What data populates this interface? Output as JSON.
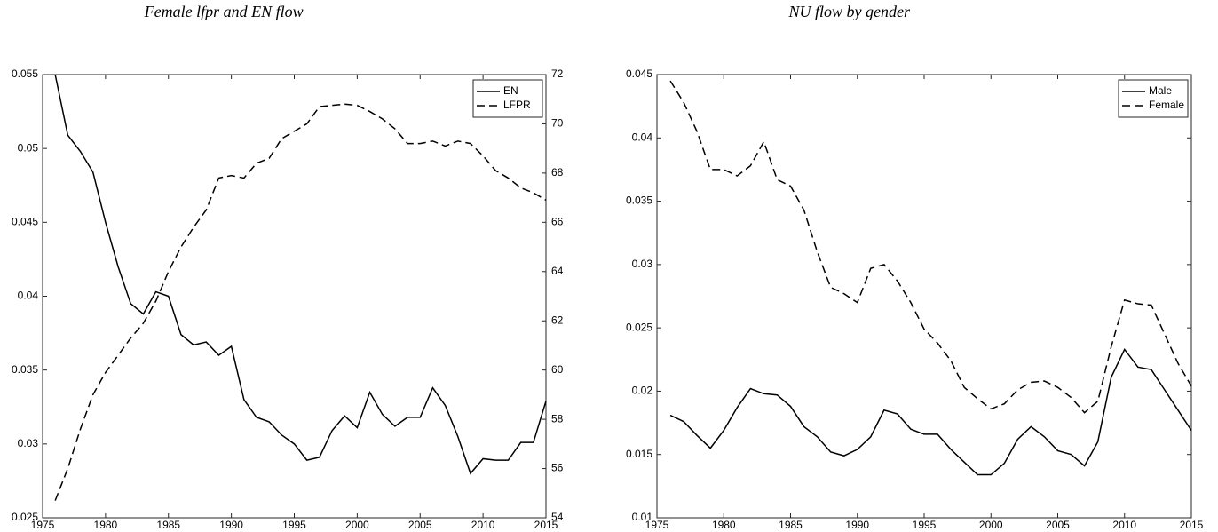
{
  "chart_data": [
    {
      "type": "line",
      "title": "Female lfpr and EN flow",
      "x": [
        1976,
        1977,
        1978,
        1979,
        1980,
        1981,
        1982,
        1983,
        1984,
        1985,
        1986,
        1987,
        1988,
        1989,
        1990,
        1991,
        1992,
        1993,
        1994,
        1995,
        1996,
        1997,
        1998,
        1999,
        2000,
        2001,
        2002,
        2003,
        2004,
        2005,
        2006,
        2007,
        2008,
        2009,
        2010,
        2011,
        2012,
        2013,
        2014,
        2015
      ],
      "series": [
        {
          "name": "EN",
          "color": "#000000",
          "dash": "solid",
          "values": [
            0.055,
            0.0509,
            0.0498,
            0.0484,
            0.045,
            0.042,
            0.0395,
            0.0388,
            0.0403,
            0.04,
            0.0374,
            0.0367,
            0.0369,
            0.036,
            0.0366,
            0.033,
            0.0318,
            0.0315,
            0.0306,
            0.03,
            0.0289,
            0.0291,
            0.0309,
            0.0319,
            0.0311,
            0.0335,
            0.032,
            0.0312,
            0.0318,
            0.0318,
            0.0338,
            0.0326,
            0.0305,
            0.028,
            0.029,
            0.0289,
            0.0289,
            0.0301,
            0.0301,
            0.0329
          ]
        },
        {
          "name": "LFPR",
          "color": "#000000",
          "dash": "dashed",
          "axis": "y2",
          "values": [
            54.7,
            56.0,
            57.6,
            59.0,
            59.9,
            60.6,
            61.3,
            61.9,
            62.8,
            64.0,
            65.0,
            65.8,
            66.5,
            67.8,
            67.9,
            67.8,
            68.4,
            68.6,
            69.4,
            69.7,
            70.0,
            70.7,
            70.75,
            70.8,
            70.75,
            70.5,
            70.2,
            69.8,
            69.2,
            69.2,
            69.3,
            69.1,
            69.3,
            69.2,
            68.7,
            68.1,
            67.8,
            67.4,
            67.2,
            66.9
          ]
        }
      ],
      "xlim": [
        1975,
        2015
      ],
      "xticks": [
        1975,
        1980,
        1985,
        1990,
        1995,
        2000,
        2005,
        2010,
        2015
      ],
      "ylim": [
        0.025,
        0.055
      ],
      "yticks": [
        0.025,
        0.03,
        0.035,
        0.04,
        0.045,
        0.05,
        0.055
      ],
      "y2lim": [
        54,
        72
      ],
      "y2ticks": [
        54,
        56,
        58,
        60,
        62,
        64,
        66,
        68,
        70,
        72
      ],
      "legend": "upper right",
      "grid": false
    },
    {
      "type": "line",
      "title": "NU flow by gender",
      "x": [
        1976,
        1977,
        1978,
        1979,
        1980,
        1981,
        1982,
        1983,
        1984,
        1985,
        1986,
        1987,
        1988,
        1989,
        1990,
        1991,
        1992,
        1993,
        1994,
        1995,
        1996,
        1997,
        1998,
        1999,
        2000,
        2001,
        2002,
        2003,
        2004,
        2005,
        2006,
        2007,
        2008,
        2009,
        2010,
        2011,
        2012,
        2013,
        2014,
        2015
      ],
      "series": [
        {
          "name": "Male",
          "color": "#000000",
          "dash": "solid",
          "values": [
            0.0181,
            0.0176,
            0.0165,
            0.0155,
            0.0169,
            0.0187,
            0.0202,
            0.0198,
            0.0197,
            0.0188,
            0.0172,
            0.0164,
            0.0152,
            0.0149,
            0.0154,
            0.0164,
            0.0185,
            0.0182,
            0.017,
            0.0166,
            0.0166,
            0.0154,
            0.0144,
            0.0134,
            0.0134,
            0.0143,
            0.0162,
            0.0172,
            0.0164,
            0.0153,
            0.015,
            0.0141,
            0.016,
            0.0211,
            0.0233,
            0.0219,
            0.0217,
            0.0201,
            0.0185,
            0.0169
          ]
        },
        {
          "name": "Female",
          "color": "#000000",
          "dash": "dashed",
          "values": [
            0.0445,
            0.0428,
            0.0405,
            0.0375,
            0.0375,
            0.037,
            0.0378,
            0.0397,
            0.0367,
            0.0362,
            0.0343,
            0.031,
            0.0282,
            0.0277,
            0.027,
            0.0297,
            0.03,
            0.0287,
            0.027,
            0.0249,
            0.0238,
            0.0224,
            0.0203,
            0.0194,
            0.0186,
            0.019,
            0.0201,
            0.0207,
            0.0208,
            0.0203,
            0.0195,
            0.0183,
            0.0192,
            0.0235,
            0.0272,
            0.0269,
            0.0268,
            0.0245,
            0.0222,
            0.0204
          ]
        }
      ],
      "xlim": [
        1975,
        2015
      ],
      "xticks": [
        1975,
        1980,
        1985,
        1990,
        1995,
        2000,
        2005,
        2010,
        2015
      ],
      "ylim": [
        0.01,
        0.045
      ],
      "yticks": [
        0.01,
        0.015,
        0.02,
        0.025,
        0.03,
        0.035,
        0.04,
        0.045
      ],
      "legend": "upper right",
      "grid": false
    }
  ]
}
